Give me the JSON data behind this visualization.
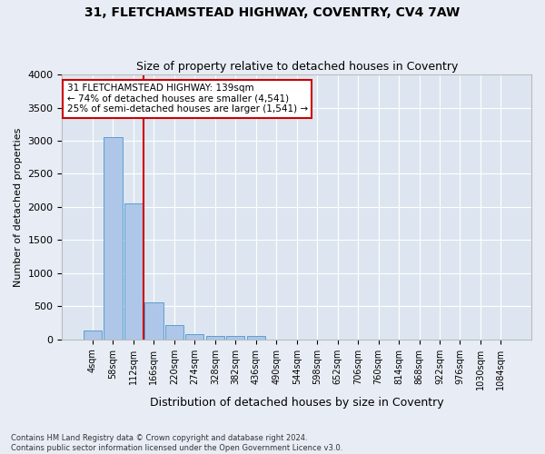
{
  "title1": "31, FLETCHAMSTEAD HIGHWAY, COVENTRY, CV4 7AW",
  "title2": "Size of property relative to detached houses in Coventry",
  "xlabel": "Distribution of detached houses by size in Coventry",
  "ylabel": "Number of detached properties",
  "bar_color": "#aec6e8",
  "bar_edge_color": "#5a9fd4",
  "background_color": "#dde6f0",
  "grid_color": "#ffffff",
  "annotation_box_color": "#cc0000",
  "tick_labels": [
    "4sqm",
    "58sqm",
    "112sqm",
    "166sqm",
    "220sqm",
    "274sqm",
    "328sqm",
    "382sqm",
    "436sqm",
    "490sqm",
    "544sqm",
    "598sqm",
    "652sqm",
    "706sqm",
    "760sqm",
    "814sqm",
    "868sqm",
    "922sqm",
    "976sqm",
    "1030sqm",
    "1084sqm"
  ],
  "bar_values": [
    130,
    3060,
    2060,
    560,
    220,
    80,
    50,
    50,
    50,
    0,
    0,
    0,
    0,
    0,
    0,
    0,
    0,
    0,
    0,
    0,
    0
  ],
  "ylim": [
    0,
    4000
  ],
  "yticks": [
    0,
    500,
    1000,
    1500,
    2000,
    2500,
    3000,
    3500,
    4000
  ],
  "property_label": "31 FLETCHAMSTEAD HIGHWAY: 139sqm",
  "annotation_line1": "← 74% of detached houses are smaller (4,541)",
  "annotation_line2": "25% of semi-detached houses are larger (1,541) →",
  "vline_x": 2.5,
  "footer1": "Contains HM Land Registry data © Crown copyright and database right 2024.",
  "footer2": "Contains public sector information licensed under the Open Government Licence v3.0."
}
